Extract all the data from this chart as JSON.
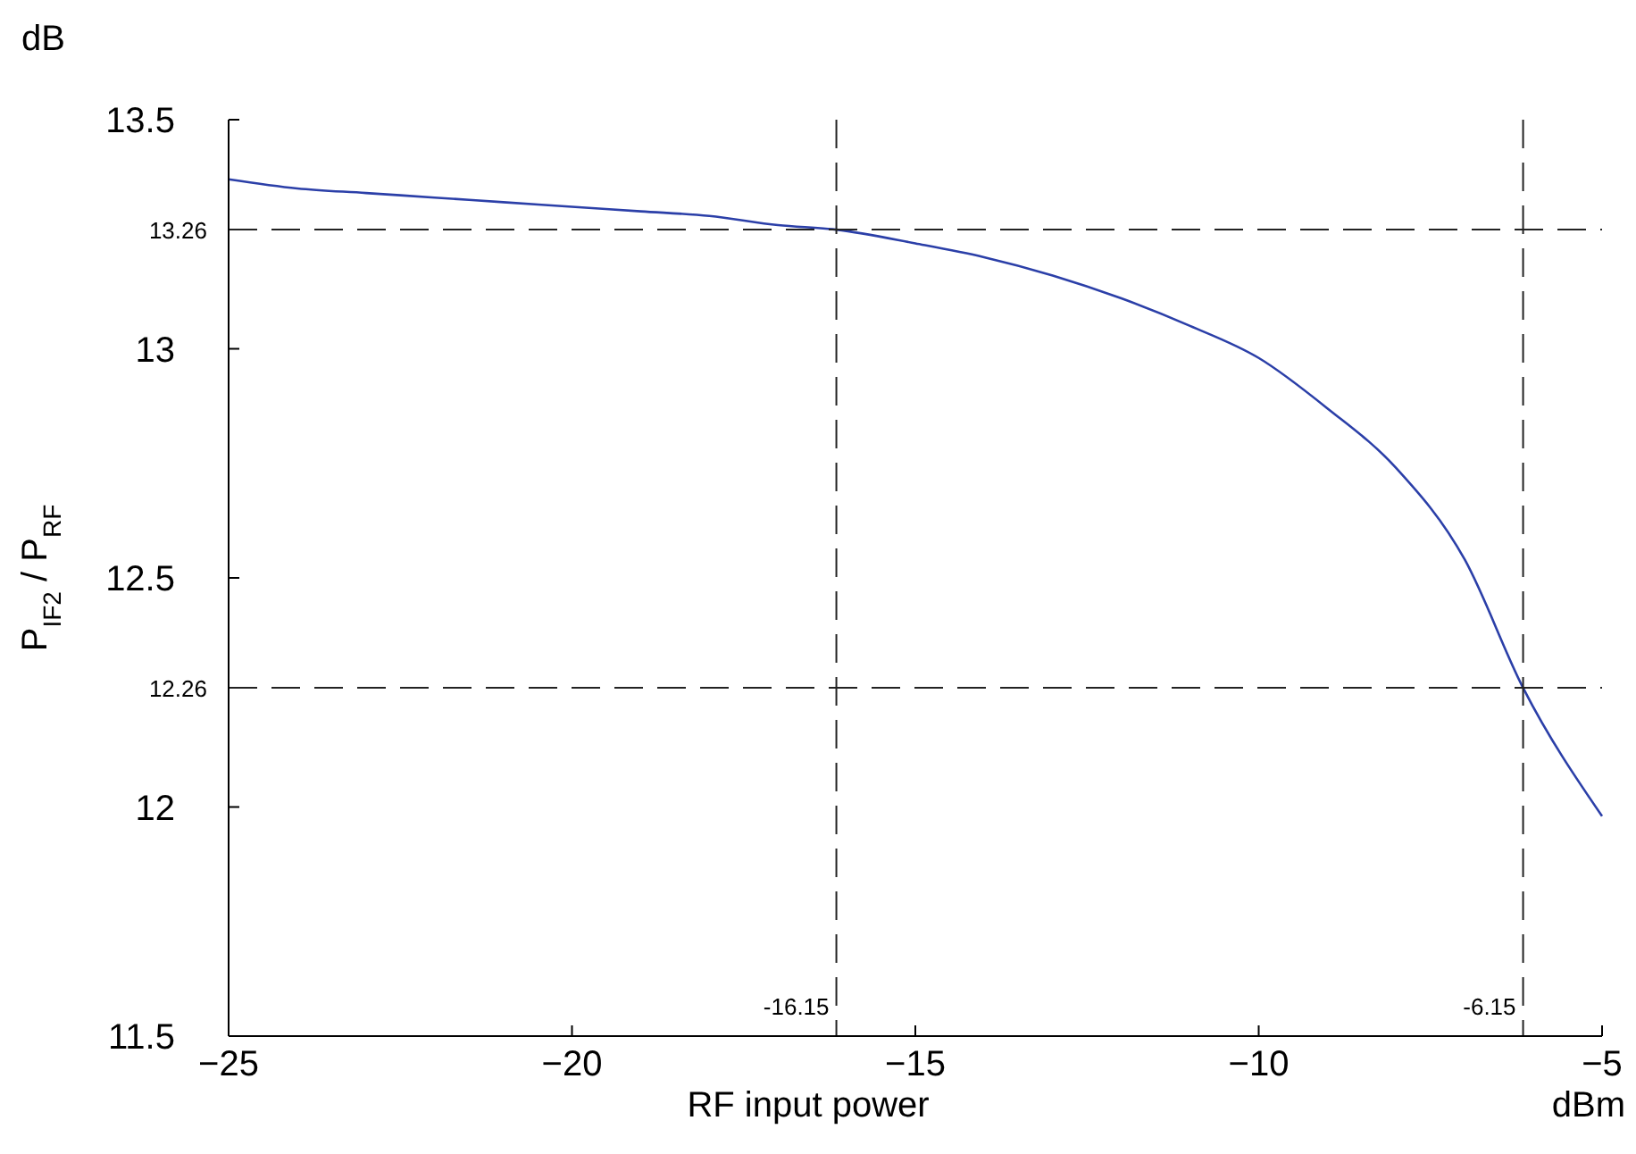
{
  "chart_data": {
    "type": "line",
    "xlabel": "RF input power",
    "ylabel": "P$_{IF2}$ / P$_{RF}$",
    "annotations": [
      "dB",
      "dBm"
    ],
    "x": [
      -25,
      -24,
      -23,
      -22,
      -21,
      -20,
      -19,
      -18,
      -17,
      -16.15,
      -15,
      -14,
      -13,
      -12,
      -11,
      -10,
      -9,
      -8,
      -7,
      -6.15,
      -5
    ],
    "series": [
      {
        "color": "#2b3fa8",
        "values": [
          13.37,
          13.35,
          13.34,
          13.33,
          13.32,
          13.31,
          13.3,
          13.29,
          13.27,
          13.26,
          13.23,
          13.2,
          13.16,
          13.11,
          13.05,
          12.98,
          12.87,
          12.74,
          12.54,
          12.26,
          11.98
        ]
      }
    ],
    "xlim": [
      -25,
      -5
    ],
    "xticks": [
      {
        "value": -25,
        "label": "−25"
      },
      {
        "value": -20,
        "label": "−20"
      },
      {
        "value": -15,
        "label": "−15"
      },
      {
        "value": -10,
        "label": "−10"
      },
      {
        "value": -5,
        "label": "−5"
      }
    ],
    "ylim": [
      11.5,
      13.5
    ],
    "yticks": [
      11.5,
      12,
      12.5,
      13,
      13.5
    ],
    "ref_lines": [
      {
        "axis": "y",
        "value": 13.26,
        "label": "13.26",
        "line_style": "dashed"
      },
      {
        "axis": "y",
        "value": 12.26,
        "label": "12.26",
        "line_style": "dashed"
      },
      {
        "axis": "x",
        "value": -16.15,
        "label": "-16.15",
        "line_style": "dashed"
      },
      {
        "axis": "x",
        "value": -6.15,
        "label": "-6.15",
        "line_style": "dashed"
      }
    ],
    "line_style": "solid"
  }
}
